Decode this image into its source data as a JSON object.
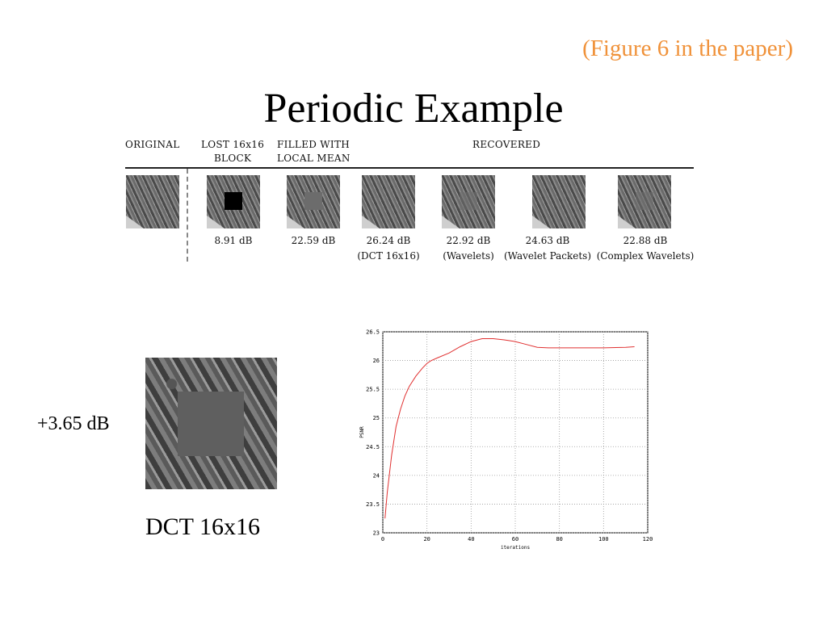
{
  "figure_ref": "(Figure 6 in the paper)",
  "title": "Periodic Example",
  "strip": {
    "headers": {
      "original": "ORIGINAL",
      "lost_line1": "LOST 16x16",
      "lost_line2": "BLOCK",
      "filled_line1": "FILLED WITH",
      "filled_line2": "LOCAL MEAN",
      "recovered": "RECOVERED"
    },
    "captions": [
      {
        "value": "8.91 dB",
        "method": ""
      },
      {
        "value": "22.59 dB",
        "method": ""
      },
      {
        "value": "26.24 dB",
        "method": "(DCT 16x16)"
      },
      {
        "value": "22.92 dB",
        "method": "(Wavelets)"
      },
      {
        "value": "24.63 dB",
        "method": "(Wavelet Packets)"
      },
      {
        "value": "22.88 dB",
        "method": "(Complex Wavelets)"
      }
    ]
  },
  "gain_label": "+3.65 dB",
  "dct_caption": "DCT 16x16",
  "colors": {
    "figure_ref": "#f0923a",
    "curve": "#e03030"
  },
  "chart_data": {
    "type": "line",
    "xlabel": "iterations",
    "ylabel": "PSNR",
    "xlim": [
      0,
      120
    ],
    "ylim": [
      23,
      26.5
    ],
    "xticks": [
      "0",
      "20",
      "40",
      "60",
      "80",
      "100",
      "120"
    ],
    "yticks": [
      "23",
      "23.5",
      "24",
      "24.5",
      "25",
      "25.5",
      "26",
      "26.5"
    ],
    "grid": true,
    "series": [
      {
        "x": [
          1,
          2,
          4,
          6,
          8,
          10,
          12,
          15,
          18,
          20,
          22,
          25,
          30,
          35,
          40,
          45,
          50,
          55,
          60,
          65,
          70,
          75,
          80,
          90,
          100,
          110,
          114
        ],
        "y": [
          23.25,
          23.7,
          24.35,
          24.85,
          25.15,
          25.38,
          25.55,
          25.73,
          25.87,
          25.95,
          26.0,
          26.05,
          26.13,
          26.24,
          26.33,
          26.38,
          26.38,
          26.36,
          26.33,
          26.28,
          26.23,
          26.22,
          26.22,
          26.22,
          26.22,
          26.23,
          26.24
        ]
      }
    ]
  }
}
